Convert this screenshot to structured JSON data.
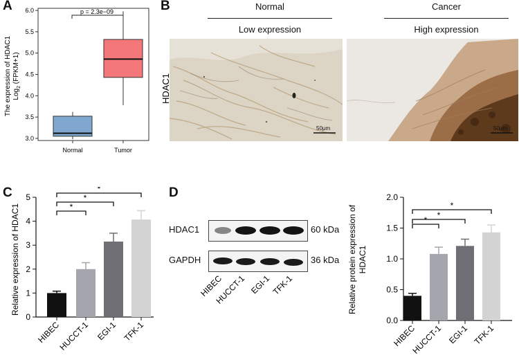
{
  "panels": {
    "A": "A",
    "B": "B",
    "C": "C",
    "D": "D"
  },
  "panel_a": {
    "ylabel_line1": "The expression of HDAC1",
    "ylabel_line2": "Log",
    "ylabel_sub": "2",
    "ylabel_line2_rest": " (FPKM+1)",
    "pvalue": "p = 2.3e−09"
  },
  "panel_b": {
    "col_normal": "Normal",
    "col_cancer": "Cancer",
    "sub_normal": "Low expression",
    "sub_cancer": "High expression",
    "row_label": "HDAC1",
    "scale_left": "50μm",
    "scale_right": "50μm"
  },
  "panel_d_blot": {
    "bands": [
      {
        "name": "HDAC1",
        "kda": "60 kDa"
      },
      {
        "name": "GAPDH",
        "kda": "36 kDa"
      }
    ],
    "lanes": [
      "HIBEC",
      "HUCCT-1",
      "EGI-1",
      "TFK-1"
    ]
  },
  "chart_data": [
    {
      "panel": "A",
      "type": "box",
      "categories": [
        "Normal",
        "Tumor"
      ],
      "ylim": [
        2.95,
        6.05
      ],
      "yticks": [
        3.0,
        3.5,
        4.0,
        4.5,
        5.0,
        5.5,
        6.0
      ],
      "boxes": [
        {
          "name": "Normal",
          "min": 2.98,
          "q1": 3.05,
          "median": 3.12,
          "q3": 3.52,
          "max": 3.62,
          "color": "#7fa7cf"
        },
        {
          "name": "Tumor",
          "min": 3.78,
          "q1": 4.43,
          "median": 4.86,
          "q3": 5.32,
          "max": 5.98,
          "color": "#f4777a"
        }
      ]
    },
    {
      "panel": "C",
      "type": "bar",
      "ylabel": "Relative expression of HDAC1",
      "categories": [
        "HIBEC",
        "HUCCT-1",
        "EGI-1",
        "TFK-1"
      ],
      "values": [
        1.0,
        2.0,
        3.15,
        4.07
      ],
      "errors": [
        0.08,
        0.27,
        0.35,
        0.37
      ],
      "colors": [
        "#111111",
        "#a5a5ad",
        "#6e6e74",
        "#d3d3d3"
      ],
      "ylim": [
        0,
        5
      ],
      "yticks": [
        0,
        1,
        2,
        3,
        4,
        5
      ],
      "significance": [
        "*",
        "*",
        "*"
      ]
    },
    {
      "panel": "D",
      "type": "bar",
      "ylabel_line1": "Relative protein expression of",
      "ylabel_line2": "HDAC1",
      "categories": [
        "HIBEC",
        "HUCCT-1",
        "EGI-1",
        "TFK-1"
      ],
      "values": [
        0.4,
        1.08,
        1.21,
        1.43
      ],
      "errors": [
        0.04,
        0.11,
        0.11,
        0.12
      ],
      "colors": [
        "#111111",
        "#a5a5ad",
        "#6e6e74",
        "#d3d3d3"
      ],
      "ylim": [
        0,
        2.0
      ],
      "yticks": [
        "0.0",
        "0.5",
        "1.0",
        "1.5",
        "2.0"
      ],
      "significance": [
        "*",
        "*",
        "*"
      ]
    }
  ]
}
